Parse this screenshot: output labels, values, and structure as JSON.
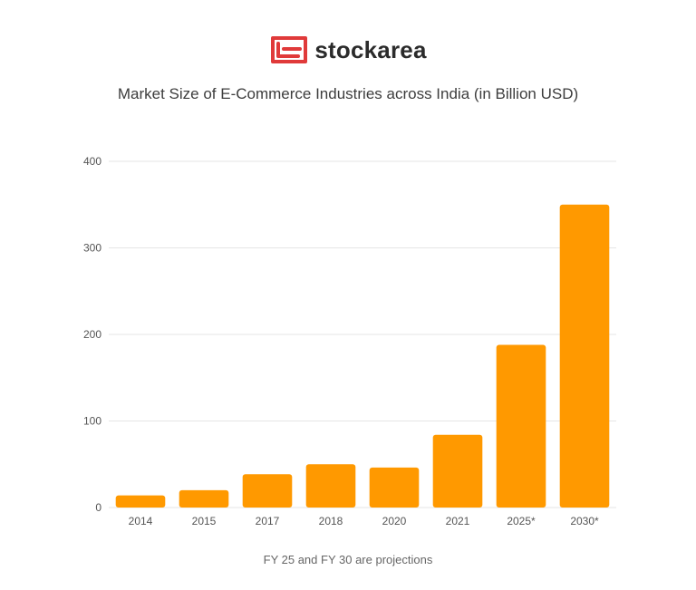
{
  "brand": {
    "name": "stockarea",
    "logo_color": "#e03a3a"
  },
  "footnote": "FY 25 and FY 30 are projections",
  "colors": {
    "bar": "#ff9900",
    "grid": "#e6e6e6"
  },
  "chart_data": {
    "type": "bar",
    "title": "Market Size of E-Commerce Industries across India (in Billion USD)",
    "categories": [
      "2014",
      "2015",
      "2017",
      "2018",
      "2020",
      "2021",
      "2025*",
      "2030*"
    ],
    "values": [
      14,
      20,
      38.5,
      50,
      46.2,
      84,
      188,
      350
    ],
    "xlabel": "",
    "ylabel": "",
    "ylim": [
      0,
      400
    ],
    "yticks": [
      0,
      100,
      200,
      300,
      400
    ],
    "grid": true,
    "legend": "none"
  }
}
